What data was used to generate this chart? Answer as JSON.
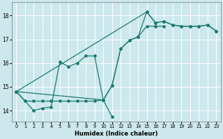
{
  "xlabel": "Humidex (Indice chaleur)",
  "bg_color": "#cce8ec",
  "grid_color": "#ffffff",
  "line_color": "#1a7a6e",
  "xlim": [
    -0.5,
    23.5
  ],
  "ylim": [
    13.55,
    18.55
  ],
  "yticks": [
    14,
    15,
    16,
    17,
    18
  ],
  "xticks": [
    0,
    1,
    2,
    3,
    4,
    5,
    6,
    7,
    8,
    9,
    10,
    11,
    12,
    13,
    14,
    15,
    16,
    17,
    18,
    19,
    20,
    21,
    22,
    23
  ],
  "line1_x": [
    0,
    1,
    2,
    3,
    4,
    5,
    6,
    7,
    8,
    9,
    10,
    11
  ],
  "line1_y": [
    14.8,
    14.4,
    14.0,
    14.1,
    14.15,
    16.05,
    15.85,
    16.0,
    16.3,
    16.3,
    14.45,
    13.75
  ],
  "line2_x": [
    0,
    1,
    2,
    3,
    4,
    5,
    6,
    7,
    8,
    9,
    10,
    11,
    12,
    13,
    14,
    15,
    16,
    17
  ],
  "line2_y": [
    14.8,
    14.4,
    14.4,
    14.4,
    14.4,
    14.4,
    14.4,
    14.4,
    14.4,
    14.4,
    14.45,
    15.05,
    16.6,
    16.95,
    17.1,
    17.55,
    17.55,
    17.55
  ],
  "line3_x": [
    0,
    10,
    11,
    12,
    13,
    14,
    15,
    16,
    17,
    18,
    19,
    20,
    21,
    22,
    23
  ],
  "line3_y": [
    14.8,
    14.45,
    15.05,
    16.6,
    16.95,
    17.1,
    18.15,
    17.7,
    17.75,
    17.6,
    17.55,
    17.55,
    17.55,
    17.6,
    17.35
  ],
  "line4_x": [
    0,
    15,
    16,
    17,
    18,
    19,
    20,
    21,
    22,
    23
  ],
  "line4_y": [
    14.8,
    18.15,
    17.7,
    17.75,
    17.6,
    17.55,
    17.55,
    17.55,
    17.6,
    17.35
  ]
}
